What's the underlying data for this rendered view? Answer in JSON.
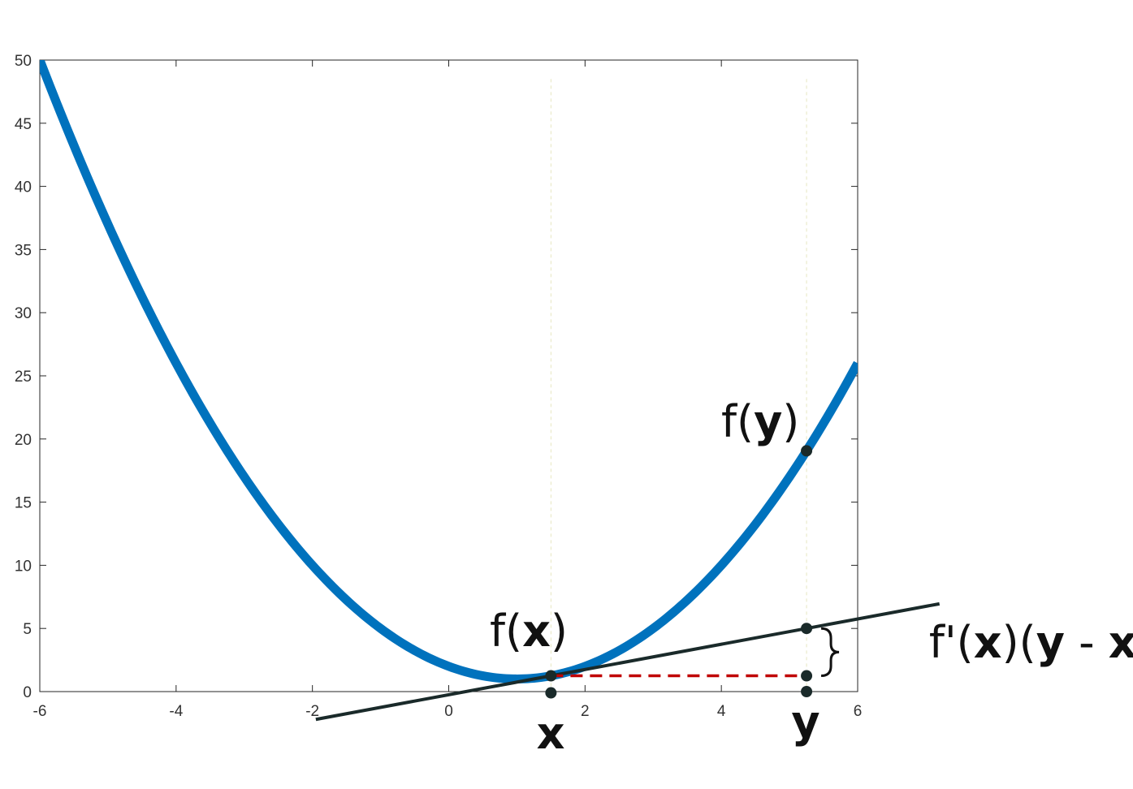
{
  "chart_data": {
    "type": "line",
    "title": "",
    "xlabel": "",
    "ylabel": "",
    "xlim": [
      -6,
      6
    ],
    "ylim": [
      0,
      50
    ],
    "xticks": [
      "-6",
      "-4",
      "-2",
      "0",
      "2",
      "4",
      "6"
    ],
    "yticks": [
      "0",
      "5",
      "10",
      "15",
      "20",
      "25",
      "30",
      "35",
      "40",
      "45",
      "50"
    ],
    "grid": false,
    "series": [
      {
        "kind": "curve",
        "function": "(x-1)^2 + 1",
        "x_range": [
          -6,
          6
        ],
        "color": "#0072BD"
      },
      {
        "kind": "tangent-line",
        "x_range": [
          -1.95,
          7.2
        ],
        "at_x": 1.5,
        "slope": 1.0,
        "color": "#1a2a2a"
      }
    ],
    "points": {
      "x": 1.5,
      "y": 5.25,
      "fx": 1.25,
      "fy": 19.06,
      "tangent_at_y": 5.0
    },
    "colors": {
      "curve": "#0072BD",
      "tangent": "#1a2a2a",
      "dashed": "#c00000",
      "guide": "#e6e6c0",
      "point": "#1a2a2a"
    },
    "annotations": {
      "label_x": "x",
      "label_y": "y",
      "label_fx_pre": "f(",
      "label_fx_var": "x",
      "label_fx_post": ")",
      "label_fy_pre": "f(",
      "label_fy_var": "y",
      "label_fy_post": ")",
      "label_deriv_pre": "f'(",
      "label_deriv_x1": "x",
      "label_deriv_mid": ")(",
      "label_deriv_y": "y",
      "label_deriv_sep": " - ",
      "label_deriv_x2": "x",
      "label_deriv_post": ")"
    }
  }
}
